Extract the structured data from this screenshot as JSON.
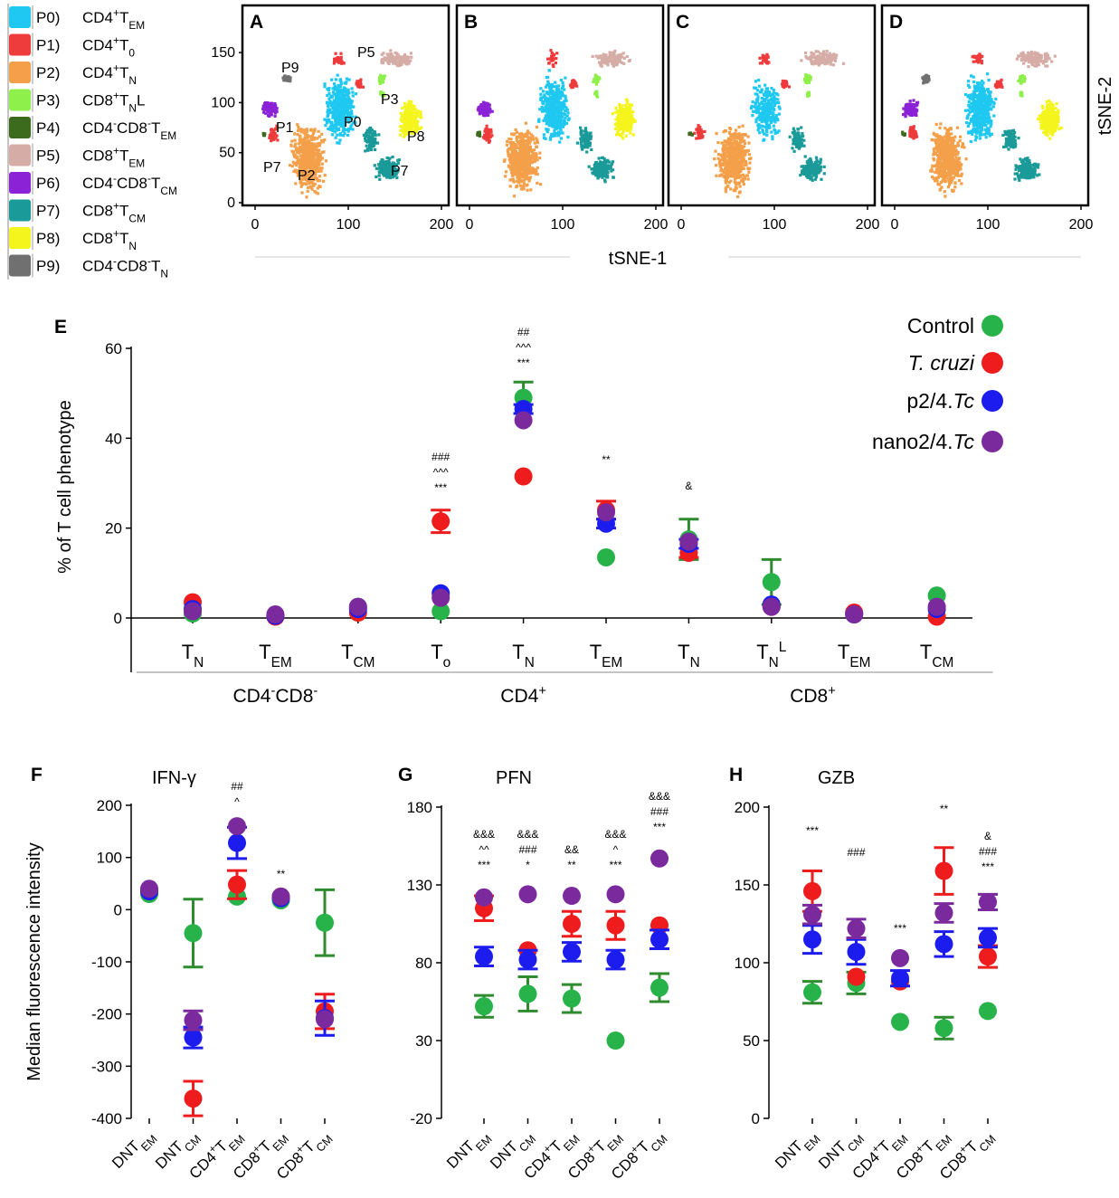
{
  "legend": {
    "items": [
      {
        "code": "P0)",
        "name": "CD4+TEM",
        "html": "CD4<sup>+</sup>T<sub>EM</sub>",
        "color": "#1ec8f0"
      },
      {
        "code": "P1)",
        "name": "CD4+T0",
        "html": "CD4<sup>+</sup>T<sub>0</sub>",
        "color": "#ee3b3b"
      },
      {
        "code": "P2)",
        "name": "CD4+TN",
        "html": "CD4<sup>+</sup>T<sub>N</sub>",
        "color": "#f4a04a"
      },
      {
        "code": "P3)",
        "name": "CD8+TNL",
        "html": "CD8<sup>+</sup>T<sub>N</sub>L",
        "color": "#8ef04a"
      },
      {
        "code": "P4)",
        "name": "CD4-CD8-TEM",
        "html": "CD4<sup>-</sup>CD8<sup>-</sup>T<sub>EM</sub>",
        "color": "#3d6b1e"
      },
      {
        "code": "P5)",
        "name": "CD8+TEM",
        "html": "CD8<sup>+</sup>T<sub>EM</sub>",
        "color": "#d6ada6"
      },
      {
        "code": "P6)",
        "name": "CD4-CD8-TCM",
        "html": "CD4<sup>-</sup>CD8<sup>-</sup>T<sub>CM</sub>",
        "color": "#8b22d6"
      },
      {
        "code": "P7)",
        "name": "CD8+TCM",
        "html": "CD8<sup>+</sup>T<sub>CM</sub>",
        "color": "#1a9a98"
      },
      {
        "code": "P8)",
        "name": "CD8+TN",
        "html": "CD8<sup>+</sup>T<sub>N</sub>",
        "color": "#f5f51e"
      },
      {
        "code": "P9)",
        "name": "CD4-CD8-TN",
        "html": "CD4<sup>-</sup>CD8<sup>-</sup>T<sub>N</sub>",
        "color": "#707070"
      }
    ]
  },
  "tsne": {
    "xlabel": "tSNE-1",
    "ylabel": "tSNE-2",
    "xticks": [
      0,
      100,
      200
    ],
    "yticks": [
      0,
      50,
      100,
      150
    ],
    "panels": [
      "A",
      "B",
      "C",
      "D"
    ],
    "cluster_labels": [
      "P9",
      "P5",
      "P3",
      "P0",
      "P1",
      "P8",
      "P7",
      "P2",
      "P7"
    ]
  },
  "groups": [
    {
      "name": "Control",
      "html": "Control",
      "color": "#2e8b2e",
      "dot": "#28b34a"
    },
    {
      "name": "T. cruzi",
      "html": "<tspan font-style='italic'>T. cruzi</tspan>",
      "color": "#ee1c1c",
      "dot": "#ee1c1c"
    },
    {
      "name": "p2/4.Tc",
      "html": "p2/4.<tspan font-style='italic'>Tc</tspan>",
      "color": "#1c1cee",
      "dot": "#1c1cee"
    },
    {
      "name": "nano2/4.Tc",
      "html": "nano2/4.<tspan font-style='italic'>Tc</tspan>",
      "color": "#7b2a9e",
      "dot": "#7b2a9e"
    }
  ],
  "chart_data": [
    {
      "id": "E",
      "type": "scatter",
      "ylabel": "% of T cell phenotype",
      "ylim": [
        0,
        60
      ],
      "yticks": [
        0,
        20,
        40,
        60
      ],
      "categories": [
        "TN",
        "TEM",
        "TCM",
        "To",
        "TN",
        "TEM",
        "TN",
        "TNL",
        "TEM",
        "TCM"
      ],
      "category_html": [
        "T<tspan baseline-shift='sub' font-size='70%'>N</tspan>",
        "T<tspan baseline-shift='sub' font-size='70%'>EM</tspan>",
        "T<tspan baseline-shift='sub' font-size='70%'>CM</tspan>",
        "T<tspan baseline-shift='sub' font-size='70%'>o</tspan>",
        "T<tspan baseline-shift='sub' font-size='70%'>N</tspan>",
        "T<tspan baseline-shift='sub' font-size='70%'>EM</tspan>",
        "T<tspan baseline-shift='sub' font-size='70%'>N</tspan>",
        "T<tspan baseline-shift='sub' font-size='70%'>N</tspan><tspan baseline-shift='super' font-size='70%'>L</tspan>",
        "T<tspan baseline-shift='sub' font-size='70%'>EM</tspan>",
        "T<tspan baseline-shift='sub' font-size='70%'>CM</tspan>"
      ],
      "category_groups": [
        {
          "label": "CD4-CD8-",
          "html": "CD4<tspan baseline-shift='super' font-size='70%'>-</tspan>CD8<tspan baseline-shift='super' font-size='70%'>-</tspan>",
          "start": 0,
          "end": 2
        },
        {
          "label": "CD4+",
          "html": "CD4<tspan baseline-shift='super' font-size='70%'>+</tspan>",
          "start": 3,
          "end": 5
        },
        {
          "label": "CD8+",
          "html": "CD8<tspan baseline-shift='super' font-size='70%'>+</tspan>",
          "start": 6,
          "end": 9
        }
      ],
      "series": [
        {
          "name": "Control",
          "values": [
            1,
            0.5,
            2.5,
            1.5,
            49,
            13.5,
            17.5,
            8,
            1,
            5
          ],
          "err": [
            0,
            0,
            0,
            0,
            3.5,
            0,
            4.5,
            5,
            0,
            0
          ]
        },
        {
          "name": "T. cruzi",
          "values": [
            3.5,
            0.3,
            1.2,
            21.5,
            31.5,
            24,
            14.5,
            2.5,
            1.2,
            0.3
          ],
          "err": [
            0,
            0,
            0,
            2.5,
            0,
            2,
            1,
            0,
            0,
            0
          ]
        },
        {
          "name": "p2/4.Tc",
          "values": [
            2,
            0.5,
            2,
            5.5,
            46.5,
            21,
            16.5,
            3,
            0.8,
            2
          ],
          "err": [
            0,
            0,
            0,
            0,
            1,
            1,
            1,
            0,
            0,
            0
          ]
        },
        {
          "name": "nano2/4.Tc",
          "values": [
            1.5,
            0.8,
            2.5,
            4.5,
            44,
            23.5,
            17,
            2.5,
            0.8,
            2.5
          ],
          "err": [
            0,
            0,
            0,
            0,
            0,
            0,
            0,
            0,
            0,
            0
          ]
        }
      ],
      "annotations": [
        {
          "category": 3,
          "lines": [
            "###",
            "^^^",
            "***"
          ]
        },
        {
          "category": 4,
          "lines": [
            "##",
            "^^^",
            "***"
          ]
        },
        {
          "category": 5,
          "lines": [
            "**"
          ]
        },
        {
          "category": 6,
          "lines": [
            "&"
          ]
        }
      ]
    },
    {
      "id": "F",
      "type": "scatter",
      "title": "IFN-γ",
      "ylabel": "Median fluorescence intensity",
      "ylim": [
        -400,
        200
      ],
      "yticks": [
        -400,
        -300,
        -200,
        -100,
        0,
        100,
        200
      ],
      "categories": [
        "DNTEM",
        "DNTCM",
        "CD4+TEM",
        "CD8+TEM",
        "CD8+TCM"
      ],
      "category_html": [
        "DNT<tspan baseline-shift='sub' font-size='75%'>EM</tspan>",
        "DNT<tspan baseline-shift='sub' font-size='75%'>CM</tspan>",
        "CD4<tspan baseline-shift='super' font-size='70%'>+</tspan>T<tspan baseline-shift='sub' font-size='75%'>EM</tspan>",
        "CD8<tspan baseline-shift='super' font-size='70%'>+</tspan>T<tspan baseline-shift='sub' font-size='75%'>EM</tspan>",
        "CD8<tspan baseline-shift='super' font-size='70%'>+</tspan>T<tspan baseline-shift='sub' font-size='75%'>CM</tspan>"
      ],
      "series": [
        {
          "name": "Control",
          "values": [
            30,
            -45,
            25,
            18,
            -25
          ],
          "err": [
            0,
            65,
            0,
            0,
            63
          ]
        },
        {
          "name": "T. cruzi",
          "values": [
            38,
            -362,
            48,
            25,
            -195
          ],
          "err": [
            0,
            33,
            27,
            0,
            33
          ]
        },
        {
          "name": "p2/4.Tc",
          "values": [
            35,
            -245,
            128,
            22,
            -208
          ],
          "err": [
            0,
            20,
            30,
            0,
            33
          ]
        },
        {
          "name": "nano2/4.Tc",
          "values": [
            40,
            -212,
            160,
            25,
            -210
          ],
          "err": [
            0,
            18,
            0,
            0,
            0
          ]
        }
      ],
      "annotations": [
        {
          "category": 2,
          "lines": [
            "##",
            "^"
          ]
        },
        {
          "category": 3,
          "lines": [
            "**"
          ]
        }
      ]
    },
    {
      "id": "G",
      "type": "scatter",
      "title": "PFN",
      "ylim": [
        -20,
        180
      ],
      "yticks": [
        -20,
        30,
        80,
        130,
        180
      ],
      "categories": [
        "DNTEM",
        "DNTCM",
        "CD4+TEM",
        "CD8+TEM",
        "CD8+TCM"
      ],
      "category_html": [
        "DNT<tspan baseline-shift='sub' font-size='75%'>EM</tspan>",
        "DNT<tspan baseline-shift='sub' font-size='75%'>CM</tspan>",
        "CD4<tspan baseline-shift='super' font-size='70%'>+</tspan>T<tspan baseline-shift='sub' font-size='75%'>EM</tspan>",
        "CD8<tspan baseline-shift='super' font-size='70%'>+</tspan>T<tspan baseline-shift='sub' font-size='75%'>EM</tspan>",
        "CD8<tspan baseline-shift='super' font-size='70%'>+</tspan>T<tspan baseline-shift='sub' font-size='75%'>CM</tspan>"
      ],
      "series": [
        {
          "name": "Control",
          "values": [
            52,
            60,
            57,
            30,
            64
          ],
          "err": [
            7,
            11,
            9,
            0,
            9
          ]
        },
        {
          "name": "T. cruzi",
          "values": [
            115,
            88,
            105,
            104,
            104
          ],
          "err": [
            8,
            0,
            8,
            9,
            0
          ]
        },
        {
          "name": "p2/4.Tc",
          "values": [
            84,
            82,
            87,
            82,
            95
          ],
          "err": [
            6,
            6,
            6,
            6,
            6
          ]
        },
        {
          "name": "nano2/4.Tc",
          "values": [
            122,
            124,
            123,
            124,
            147
          ],
          "err": [
            0,
            0,
            0,
            0,
            0
          ]
        }
      ],
      "annotations": [
        {
          "category": 0,
          "lines": [
            "&&&",
            "^^",
            "***"
          ]
        },
        {
          "category": 1,
          "lines": [
            "&&&",
            "###",
            "*"
          ]
        },
        {
          "category": 2,
          "lines": [
            "&&",
            "**"
          ]
        },
        {
          "category": 3,
          "lines": [
            "&&&",
            "^",
            "***"
          ]
        },
        {
          "category": 4,
          "lines": [
            "&&&",
            "###",
            "***"
          ]
        }
      ]
    },
    {
      "id": "H",
      "type": "scatter",
      "title": "GZB",
      "ylim": [
        0,
        200
      ],
      "yticks": [
        0,
        50,
        100,
        150,
        200
      ],
      "categories": [
        "DNTEM",
        "DNTCM",
        "CD4+TEM",
        "CD8+TEM",
        "CD8+TCM"
      ],
      "category_html": [
        "DNT<tspan baseline-shift='sub' font-size='75%'>EM</tspan>",
        "DNT<tspan baseline-shift='sub' font-size='75%'>CM</tspan>",
        "CD4<tspan baseline-shift='super' font-size='70%'>+</tspan>T<tspan baseline-shift='sub' font-size='75%'>EM</tspan>",
        "CD8<tspan baseline-shift='super' font-size='70%'>+</tspan>T<tspan baseline-shift='sub' font-size='75%'>EM</tspan>",
        "CD8<tspan baseline-shift='super' font-size='70%'>+</tspan>T<tspan baseline-shift='sub' font-size='75%'>CM</tspan>"
      ],
      "series": [
        {
          "name": "Control",
          "values": [
            81,
            87,
            62,
            58,
            69
          ],
          "err": [
            7,
            7,
            0,
            7,
            0
          ]
        },
        {
          "name": "T. cruzi",
          "values": [
            146,
            91,
            88,
            159,
            104
          ],
          "err": [
            13,
            0,
            0,
            15,
            7
          ]
        },
        {
          "name": "p2/4.Tc",
          "values": [
            115,
            107,
            90,
            112,
            116
          ],
          "err": [
            9,
            8,
            5,
            8,
            6
          ]
        },
        {
          "name": "nano2/4.Tc",
          "values": [
            131,
            122,
            103,
            132,
            139
          ],
          "err": [
            6,
            6,
            0,
            6,
            5
          ]
        }
      ],
      "annotations": [
        {
          "category": 0,
          "lines": [
            "***"
          ]
        },
        {
          "category": 1,
          "lines": [
            "###"
          ]
        },
        {
          "category": 2,
          "lines": [
            "***"
          ]
        },
        {
          "category": 3,
          "lines": [
            "**"
          ]
        },
        {
          "category": 4,
          "lines": [
            "&",
            "###",
            "***"
          ]
        }
      ]
    }
  ]
}
